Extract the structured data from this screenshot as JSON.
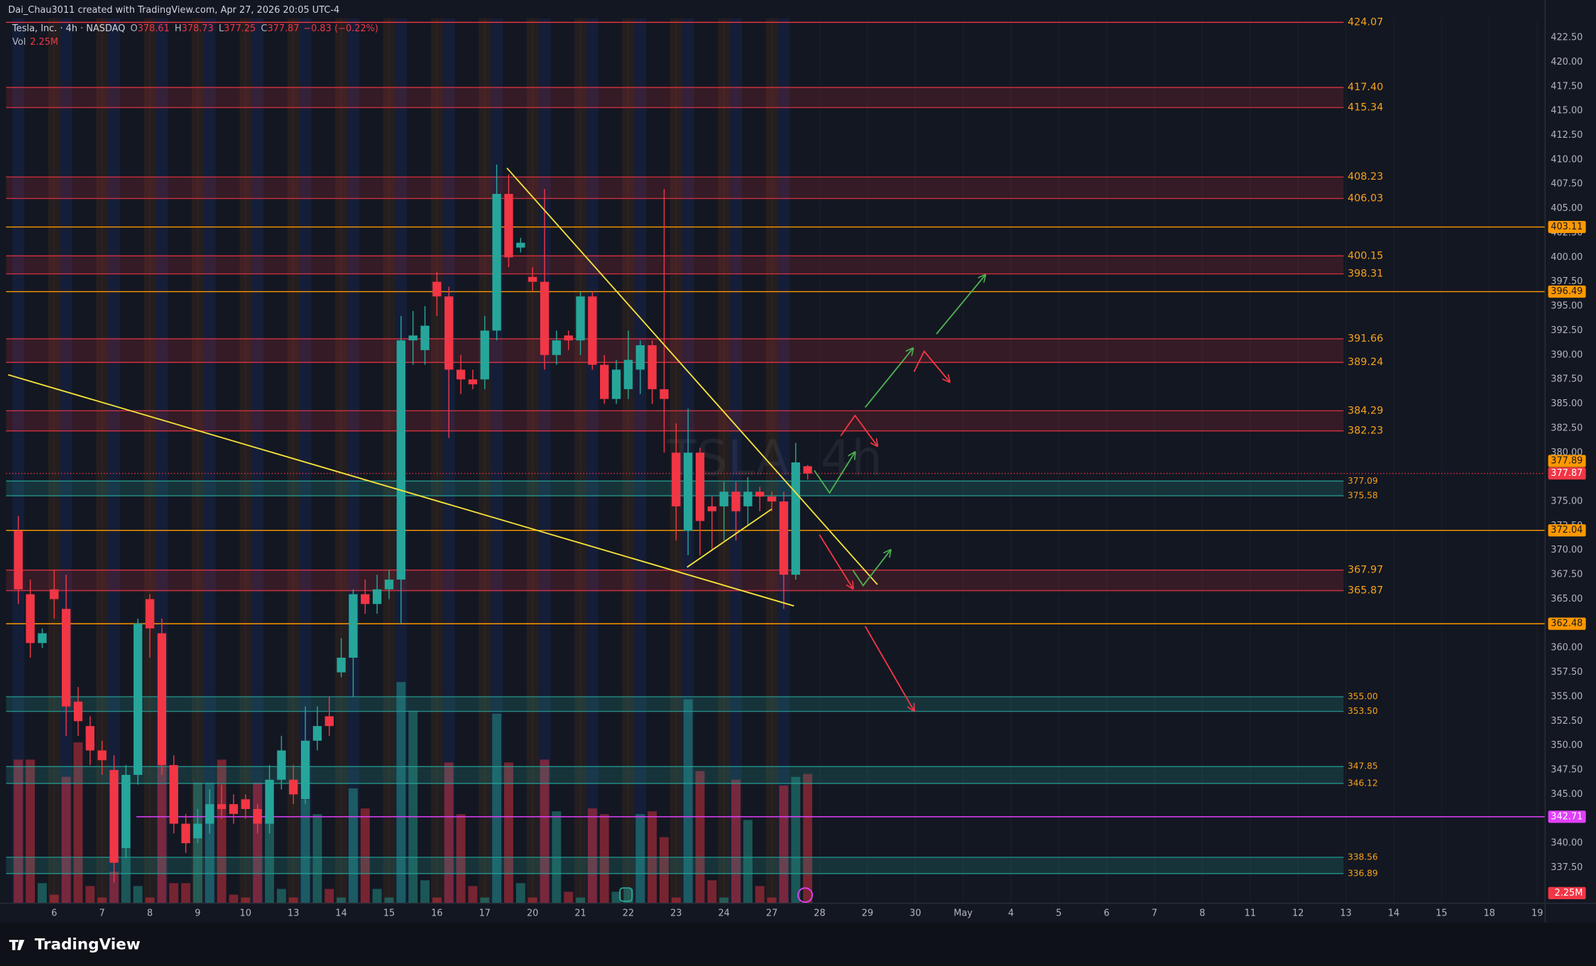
{
  "header": "Dai_Chau3011 created with TradingView.com, Apr 27, 2026 20:05 UTC-4",
  "footer": "TradingView",
  "chart_data": {
    "type": "candlestick",
    "watermark": "TSLA, 4h",
    "legend": {
      "symbol": "Tesla, Inc. · 4h · NASDAQ",
      "o": "O",
      "h": "H",
      "l": "L",
      "c": "C",
      "change": {
        "value": -0.83,
        "label": "−0.83"
      },
      "change_pct": {
        "value": -0.22,
        "label": "(−0.22%)"
      },
      "vol": "Vol",
      "vol_label": "2.25M"
    },
    "up_color": "#26a69a",
    "down_color": "#f23645",
    "x_labels": [
      "6",
      "7",
      "8",
      "9",
      "10",
      "13",
      "14",
      "15",
      "16",
      "17",
      "20",
      "21",
      "22",
      "23",
      "24",
      "27",
      "28",
      "29",
      "30",
      "May",
      "4",
      "5",
      "6",
      "7",
      "8",
      "11",
      "12",
      "13",
      "14",
      "15",
      "18",
      "19"
    ],
    "open": [
      372,
      365.5,
      360.5,
      366,
      364,
      354.5,
      352,
      349.5,
      347.5,
      339.5,
      347,
      365,
      361.5,
      348,
      342,
      340.5,
      342,
      344,
      344,
      344.5,
      343.5,
      342,
      346.5,
      346.5,
      344.5,
      350.5,
      353,
      357.5,
      359,
      365.5,
      364.5,
      366,
      367,
      391.5,
      390.5,
      397.5,
      396,
      388.5,
      387.5,
      387.5,
      392.5,
      406.5,
      401,
      398,
      397.5,
      390,
      392,
      391.5,
      396,
      389,
      385.5,
      386.5,
      388.5,
      391,
      386.5,
      380,
      372,
      380,
      374.5,
      374.5,
      376,
      374.5,
      376,
      375.5,
      375,
      367.5,
      378.61
    ],
    "high": [
      373.5,
      367,
      362,
      368,
      367.5,
      356,
      353,
      350.5,
      349,
      348,
      363,
      365.5,
      363,
      349,
      343,
      343.5,
      345.5,
      346,
      345,
      345,
      344,
      348,
      351,
      348,
      354,
      354,
      355,
      361,
      366,
      367,
      367.5,
      368,
      394,
      394.5,
      395,
      398.5,
      397,
      390,
      388.5,
      394,
      409.5,
      408.5,
      402,
      399,
      407,
      392.5,
      392.5,
      396.5,
      396.5,
      390,
      389.5,
      392.5,
      391.5,
      391.5,
      407,
      383,
      384.5,
      380.5,
      375.5,
      377,
      377,
      377.5,
      376.5,
      376,
      376,
      381,
      378.73
    ],
    "low": [
      364.5,
      359,
      360,
      363,
      351,
      351,
      348,
      347,
      336,
      338.5,
      346,
      359,
      347,
      341,
      339,
      340,
      341,
      342.5,
      342,
      342.5,
      341,
      341,
      345.5,
      344,
      344,
      349.5,
      351,
      357,
      355,
      363.5,
      363.5,
      365,
      362.5,
      389,
      389,
      394,
      381.5,
      386,
      386.5,
      386.5,
      391.5,
      399,
      400.5,
      396.5,
      388.5,
      389,
      390.5,
      390,
      388.5,
      385,
      385,
      385.5,
      386,
      385,
      380,
      371,
      369.5,
      369.5,
      370,
      371,
      371,
      372.5,
      374,
      374,
      364,
      367,
      377.25
    ],
    "close": [
      366,
      360.5,
      361.5,
      365,
      354,
      352.5,
      349.5,
      348.5,
      338,
      347,
      362.5,
      362,
      348,
      342,
      340,
      342,
      344,
      343.5,
      343,
      343.5,
      342,
      346.5,
      349.5,
      345,
      350.5,
      352,
      352,
      359,
      365.5,
      364.5,
      366,
      367,
      391.5,
      392,
      393,
      396,
      388.5,
      387.5,
      387,
      392.5,
      406.5,
      400,
      401.5,
      397.5,
      390,
      391.5,
      391.5,
      396,
      389,
      385.5,
      388.5,
      389.5,
      391,
      386.5,
      385.5,
      374.5,
      380,
      373,
      374,
      376,
      374,
      376,
      375.5,
      375,
      367.5,
      379,
      377.87
    ],
    "volume": [
      2.5,
      2.5,
      0.35,
      0.15,
      2.2,
      2.8,
      0.3,
      0.1,
      0.55,
      2.15,
      0.3,
      0.1,
      2.4,
      0.35,
      0.35,
      2.1,
      2.1,
      2.5,
      0.15,
      0.1,
      2.1,
      1.55,
      0.25,
      0.1,
      1.8,
      1.55,
      0.25,
      0.1,
      2.0,
      1.65,
      0.25,
      0.1,
      3.85,
      3.35,
      0.4,
      0.1,
      2.45,
      1.55,
      0.3,
      0.1,
      3.3,
      2.45,
      0.35,
      0.1,
      2.5,
      1.6,
      0.2,
      0.1,
      1.65,
      1.55,
      0.2,
      0.25,
      1.55,
      1.6,
      1.15,
      0.1,
      3.55,
      2.3,
      0.4,
      0.1,
      2.15,
      1.45,
      0.3,
      0.1,
      2.05,
      2.2,
      2.25
    ],
    "volume_ylim": [
      0,
      15.4
    ],
    "ylim": [
      333.85,
      424.48
    ],
    "yticks": [
      {
        "value": 337.5,
        "label": "337.50"
      },
      {
        "value": 340,
        "label": "340.00"
      },
      {
        "value": 342.5,
        "label": "342.50"
      },
      {
        "value": 345,
        "label": "345.00"
      },
      {
        "value": 347.5,
        "label": "347.50"
      },
      {
        "value": 350,
        "label": "350.00"
      },
      {
        "value": 352.5,
        "label": "352.50"
      },
      {
        "value": 355,
        "label": "355.00"
      },
      {
        "value": 357.5,
        "label": "357.50"
      },
      {
        "value": 360,
        "label": "360.00"
      },
      {
        "value": 362.5,
        "label": "362.50"
      },
      {
        "value": 365,
        "label": "365.00"
      },
      {
        "value": 367.5,
        "label": "367.50"
      },
      {
        "value": 370,
        "label": "370.00"
      },
      {
        "value": 372.5,
        "label": "372.50"
      },
      {
        "value": 375,
        "label": "375.00"
      },
      {
        "value": 377.5,
        "label": "377.50"
      },
      {
        "value": 380,
        "label": "380.00"
      },
      {
        "value": 382.5,
        "label": "382.50"
      },
      {
        "value": 385,
        "label": "385.00"
      },
      {
        "value": 387.5,
        "label": "387.50"
      },
      {
        "value": 390,
        "label": "390.00"
      },
      {
        "value": 392.5,
        "label": "392.50"
      },
      {
        "value": 395,
        "label": "395.00"
      },
      {
        "value": 397.5,
        "label": "397.50"
      },
      {
        "value": 400,
        "label": "400.00"
      },
      {
        "value": 402.5,
        "label": "402.50"
      },
      {
        "value": 405,
        "label": "405.00"
      },
      {
        "value": 407.5,
        "label": "407.50"
      },
      {
        "value": 410,
        "label": "410.00"
      },
      {
        "value": 412.5,
        "label": "412.50"
      },
      {
        "value": 415,
        "label": "415.00"
      },
      {
        "value": 417.5,
        "label": "417.50"
      },
      {
        "value": 420,
        "label": "420.00"
      },
      {
        "value": 422.5,
        "label": "422.50"
      }
    ],
    "grid": true,
    "red_lines": [
      424.07
    ],
    "red_zones": [
      [
        {
          "value": 417.4,
          "label": "417.40"
        },
        415.34
      ],
      [
        408.23,
        406.03
      ],
      [
        400.15,
        398.31
      ],
      [
        391.66,
        389.24
      ],
      [
        384.29,
        382.23
      ],
      [
        367.97,
        365.87
      ]
    ],
    "green_zones": [
      [
        377.09,
        375.58
      ],
      [
        {
          "value": 355,
          "label": "355.00"
        },
        {
          "value": 353.5,
          "label": "353.50"
        }
      ],
      [
        347.85,
        346.12
      ],
      [
        338.56,
        336.89
      ]
    ],
    "orange_lines": [
      403.11,
      396.49,
      372.04,
      362.48
    ],
    "purple_lines": [
      342.71
    ],
    "level_colors": {
      "red": "#f23645",
      "green": "#26a69a",
      "orange": "#ff9800",
      "purple": "#e040fb",
      "label": "#f7a21b"
    },
    "extended_price": 377.89
  }
}
